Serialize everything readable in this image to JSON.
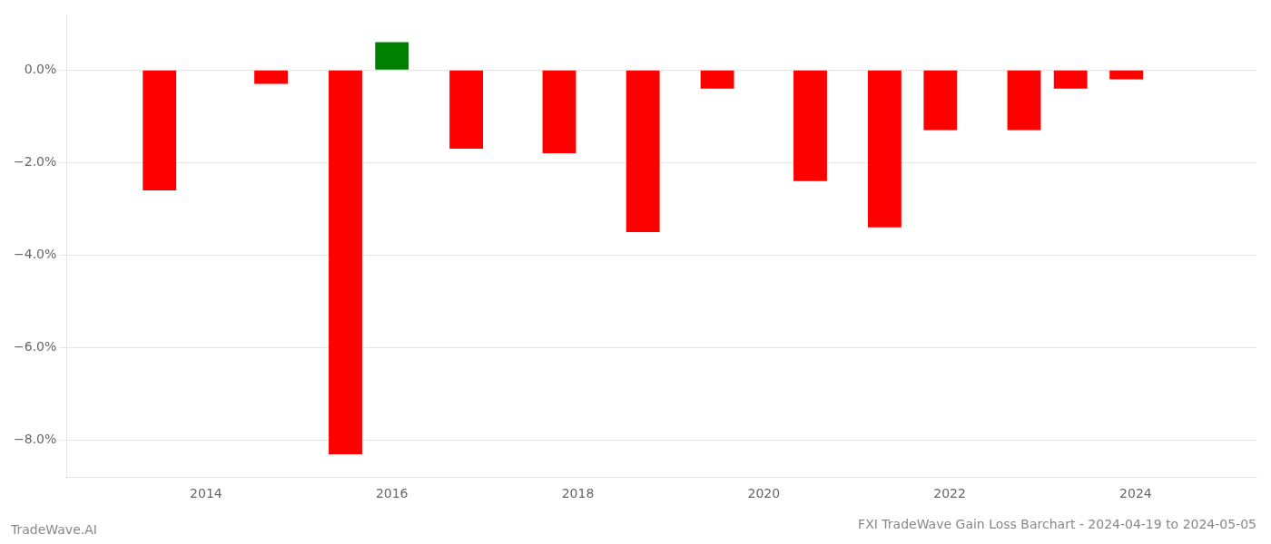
{
  "chart_data": {
    "type": "bar",
    "title": "FXI TradeWave Gain Loss Barchart - 2024-04-19 to 2024-05-05",
    "annotations": [
      "TradeWave.AI"
    ],
    "x": [
      2013.5,
      2014.7,
      2015.5,
      2016.0,
      2016.8,
      2017.8,
      2018.7,
      2019.5,
      2020.5,
      2021.3,
      2021.9,
      2022.8,
      2023.3,
      2023.9
    ],
    "values": [
      -0.026,
      -0.003,
      -0.083,
      0.006,
      -0.017,
      -0.018,
      -0.035,
      -0.004,
      -0.024,
      -0.034,
      -0.013,
      -0.013,
      -0.004,
      -0.002
    ],
    "colors": [
      "#ff0000",
      "#ff0000",
      "#ff0000",
      "#008000",
      "#ff0000",
      "#ff0000",
      "#ff0000",
      "#ff0000",
      "#ff0000",
      "#ff0000",
      "#ff0000",
      "#ff0000",
      "#ff0000",
      "#ff0000"
    ],
    "xlim": [
      2012.5,
      2025.3
    ],
    "xticks": [
      2014,
      2016,
      2018,
      2020,
      2022,
      2024
    ],
    "ylim": [
      -0.088,
      0.012
    ],
    "yticks": [
      {
        "value": -0.08,
        "label": "−8.0%"
      },
      {
        "value": -0.06,
        "label": "−6.0%"
      },
      {
        "value": -0.04,
        "label": "−4.0%"
      },
      {
        "value": -0.02,
        "label": "−2.0%"
      },
      {
        "value": 0.0,
        "label": "0.0%"
      }
    ],
    "grid": true,
    "legend": false
  }
}
